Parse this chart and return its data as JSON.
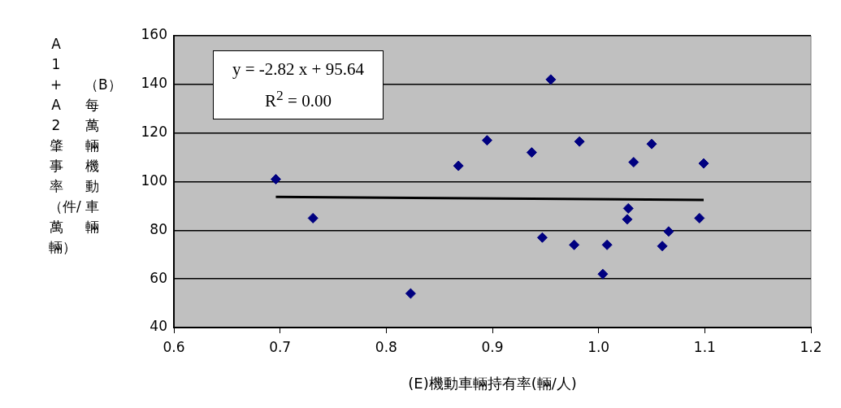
{
  "chart_data": {
    "type": "scatter",
    "xlabel": "(E)機動車輛持有率(輛/人)",
    "ylabel": "（B）每萬輛機動車輛\nA1+A2肇事率（件/萬輛）",
    "x": [
      0.696,
      0.731,
      0.823,
      0.868,
      0.895,
      0.955,
      0.937,
      0.982,
      0.947,
      0.977,
      1.008,
      1.004,
      1.028,
      1.027,
      1.033,
      1.05,
      1.066,
      1.06,
      1.095,
      1.099
    ],
    "series": [
      {
        "color": "#000080",
        "marker": "diamond",
        "values": [
          101,
          85,
          54,
          106.5,
          117,
          142,
          112,
          116.5,
          77,
          74,
          74,
          62,
          89,
          84.5,
          108,
          115.5,
          79.5,
          73.5,
          85,
          107.5
        ]
      },
      {
        "type": "line",
        "color": "#000000",
        "marker": "none",
        "x": [
          0.696,
          1.099
        ],
        "values": [
          93.7,
          92.5
        ]
      }
    ],
    "xlim": [
      0.6,
      1.2
    ],
    "xticks": [
      0.6,
      0.7,
      0.8,
      0.9,
      {
        "value": 1,
        "label": "1.0"
      },
      1.1,
      1.2
    ],
    "ylim": [
      40,
      160
    ],
    "yticks": [
      40,
      60,
      80,
      100,
      120,
      140,
      160
    ],
    "grid": "y",
    "annotations": [
      "y = -2.82 x + 95.64",
      "R$^{2}$ = 0.00"
    ]
  }
}
